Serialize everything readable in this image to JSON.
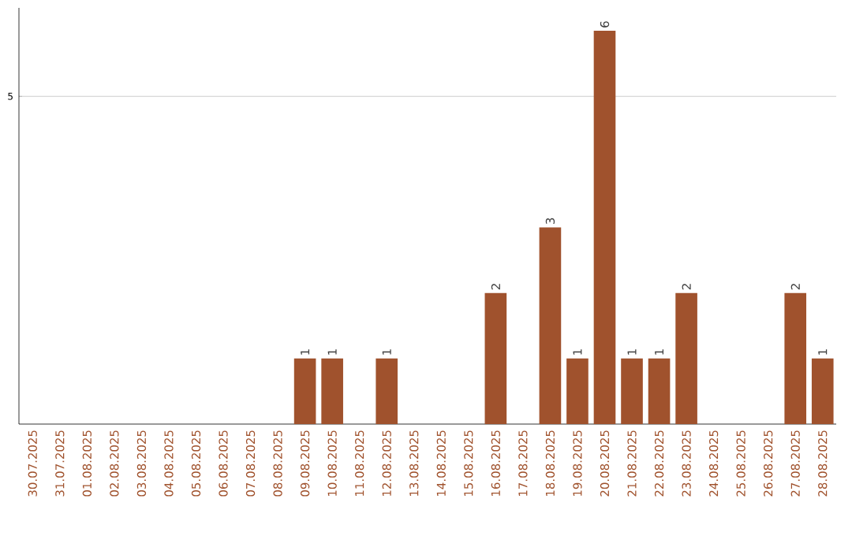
{
  "chart_data": {
    "type": "bar",
    "categories": [
      "30.07.2025",
      "31.07.2025",
      "01.08.2025",
      "02.08.2025",
      "03.08.2025",
      "04.08.2025",
      "05.08.2025",
      "06.08.2025",
      "07.08.2025",
      "08.08.2025",
      "09.08.2025",
      "10.08.2025",
      "11.08.2025",
      "12.08.2025",
      "13.08.2025",
      "14.08.2025",
      "15.08.2025",
      "16.08.2025",
      "17.08.2025",
      "18.08.2025",
      "19.08.2025",
      "20.08.2025",
      "21.08.2025",
      "22.08.2025",
      "23.08.2025",
      "24.08.2025",
      "25.08.2025",
      "26.08.2025",
      "27.08.2025",
      "28.08.2025"
    ],
    "values": [
      0,
      0,
      0,
      0,
      0,
      0,
      0,
      0,
      0,
      0,
      1,
      1,
      0,
      1,
      0,
      0,
      0,
      2,
      0,
      3,
      1,
      6,
      1,
      1,
      2,
      0,
      0,
      0,
      2,
      1
    ],
    "value_labels": [
      null,
      null,
      null,
      null,
      null,
      null,
      null,
      null,
      null,
      null,
      "1",
      "1",
      null,
      "1",
      null,
      null,
      null,
      "2",
      null,
      "3",
      "1",
      "6",
      "1",
      "1",
      "2",
      null,
      null,
      null,
      "2",
      "1"
    ],
    "color": "#a0522d",
    "ylim": [
      0,
      6.35
    ],
    "yticks": [
      5
    ],
    "grid": "y"
  }
}
